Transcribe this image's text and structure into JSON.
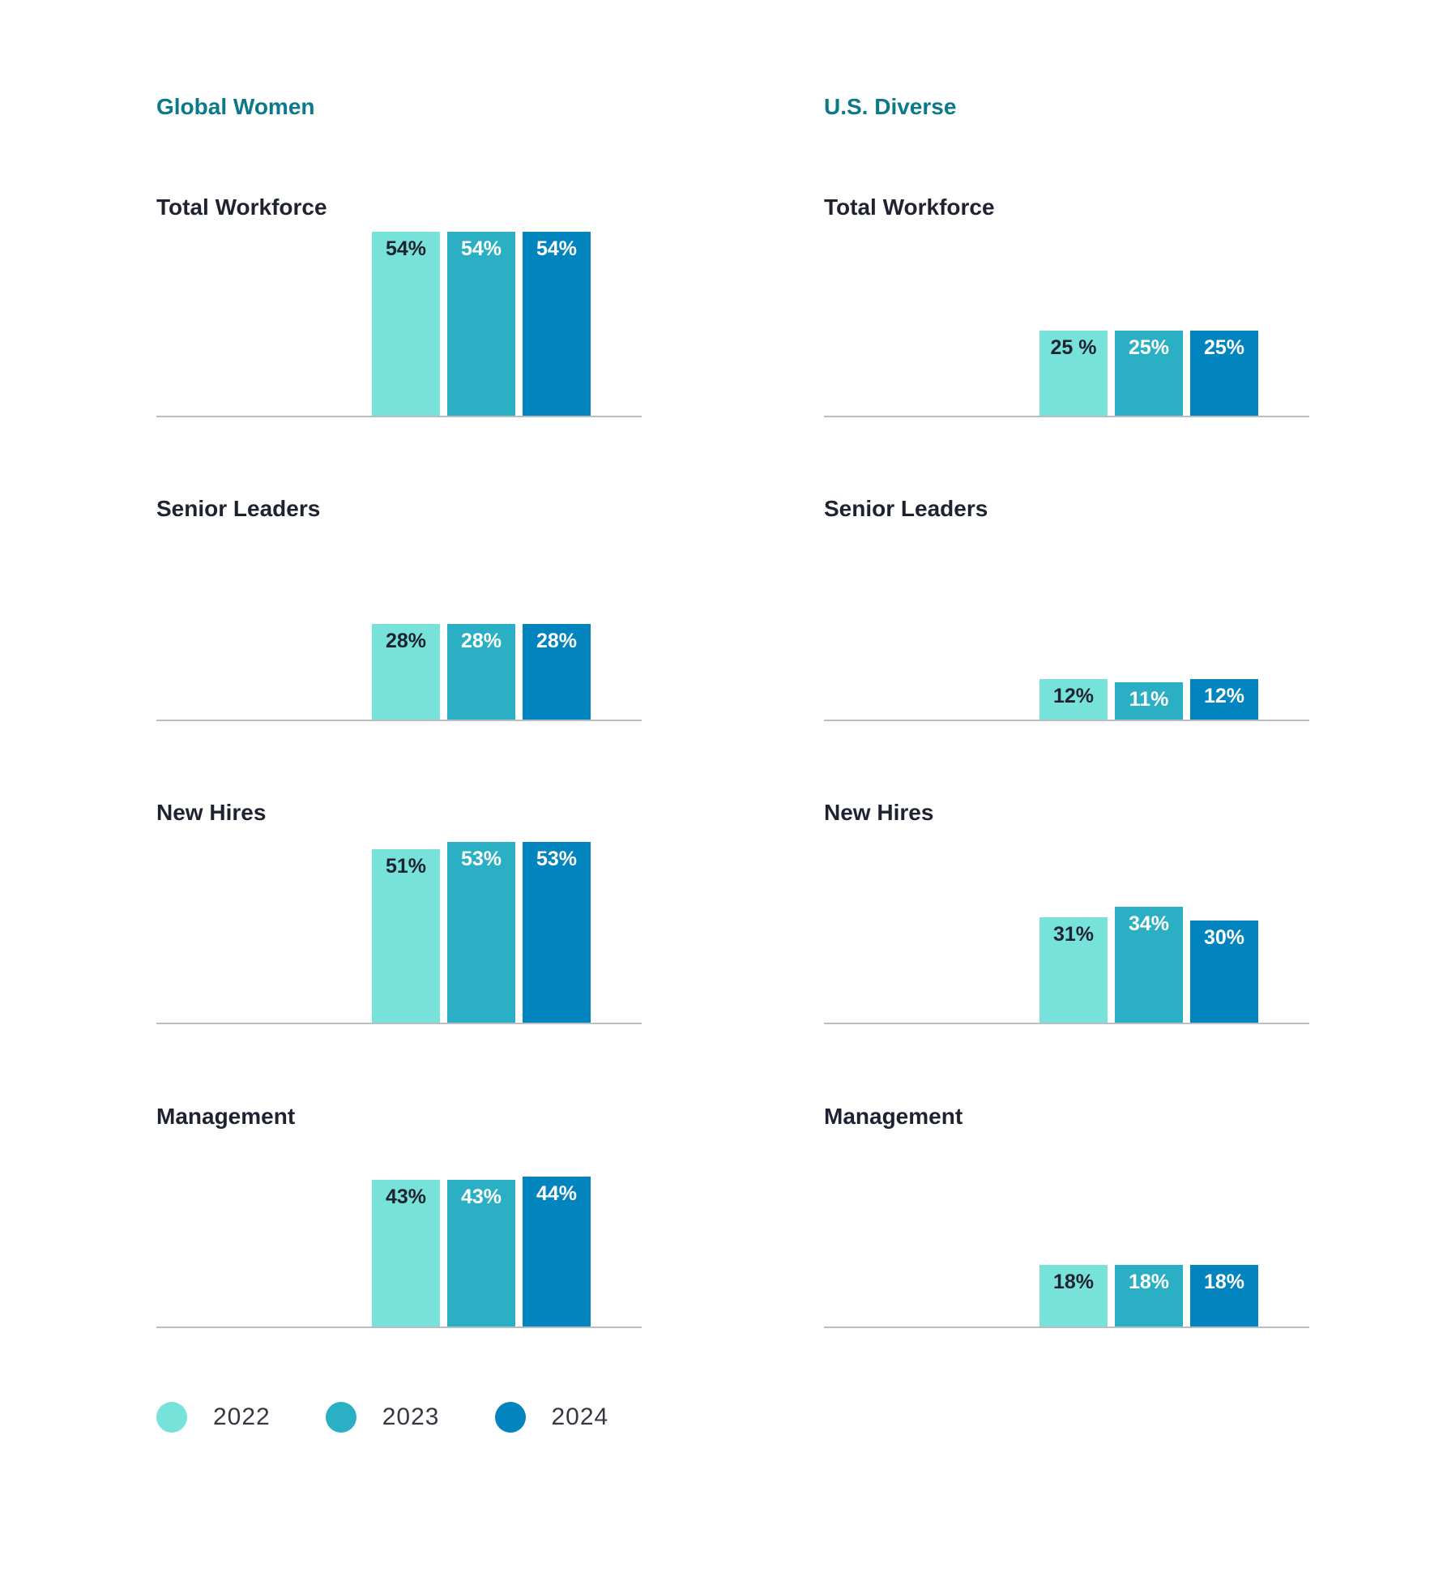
{
  "colors": {
    "2022": "#76e2da",
    "2023": "#2aafc4",
    "2024": "#0284be",
    "accent_title": "#0a7a8a",
    "dark_text": "#1f2230",
    "light_text": "#ffffff"
  },
  "legend": {
    "items": [
      {
        "label": "2022",
        "color": "#76e2da"
      },
      {
        "label": "2023",
        "color": "#2aafc4"
      },
      {
        "label": "2024",
        "color": "#0284be"
      }
    ]
  },
  "chart_data": [
    {
      "group": "Global Women",
      "panels": [
        {
          "type": "bar",
          "title": "Total Workforce",
          "categories": [
            "2022",
            "2023",
            "2024"
          ],
          "values": [
            54,
            54,
            54
          ],
          "labels": [
            "54%",
            "54%",
            "54%"
          ]
        },
        {
          "type": "bar",
          "title": "Senior Leaders",
          "categories": [
            "2022",
            "2023",
            "2024"
          ],
          "values": [
            28,
            28,
            28
          ],
          "labels": [
            "28%",
            "28%",
            "28%"
          ]
        },
        {
          "type": "bar",
          "title": "New Hires",
          "categories": [
            "2022",
            "2023",
            "2024"
          ],
          "values": [
            51,
            53,
            53
          ],
          "labels": [
            "51%",
            "53%",
            "53%"
          ]
        },
        {
          "type": "bar",
          "title": "Management",
          "categories": [
            "2022",
            "2023",
            "2024"
          ],
          "values": [
            43,
            43,
            44
          ],
          "labels": [
            "43%",
            "43%",
            "44%"
          ]
        }
      ]
    },
    {
      "group": "U.S. Diverse",
      "panels": [
        {
          "type": "bar",
          "title": "Total Workforce",
          "categories": [
            "2022",
            "2023",
            "2024"
          ],
          "values": [
            25,
            25,
            25
          ],
          "labels": [
            "25 %",
            "25%",
            "25%"
          ]
        },
        {
          "type": "bar",
          "title": "Senior Leaders",
          "categories": [
            "2022",
            "2023",
            "2024"
          ],
          "values": [
            12,
            11,
            12
          ],
          "labels": [
            "12%",
            "11%",
            "12%"
          ]
        },
        {
          "type": "bar",
          "title": "New Hires",
          "categories": [
            "2022",
            "2023",
            "2024"
          ],
          "values": [
            31,
            34,
            30
          ],
          "labels": [
            "31%",
            "34%",
            "30%"
          ]
        },
        {
          "type": "bar",
          "title": "Management",
          "categories": [
            "2022",
            "2023",
            "2024"
          ],
          "values": [
            18,
            18,
            18
          ],
          "labels": [
            "18%",
            "18%",
            "18%"
          ]
        }
      ]
    }
  ]
}
